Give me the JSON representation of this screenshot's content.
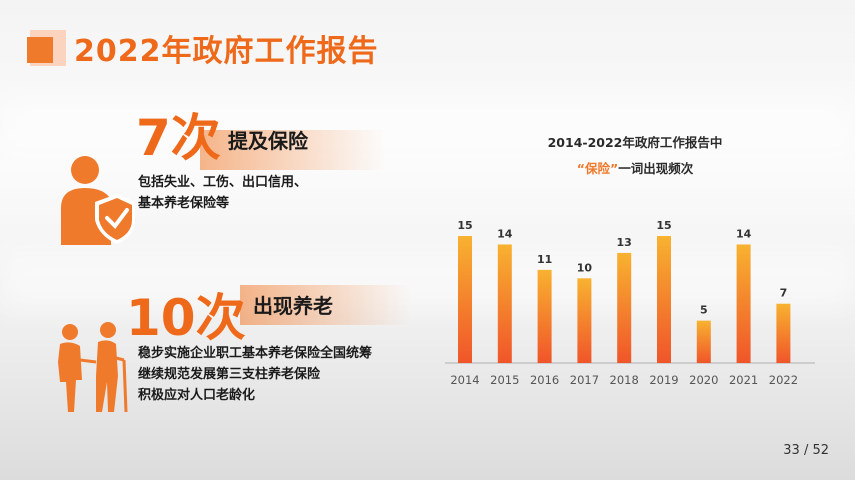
{
  "header": {
    "title": "2022年政府工作报告"
  },
  "block1": {
    "count": "7次",
    "heading": "提及保险",
    "lines": [
      "包括失业、工伤、出口信用、",
      "基本养老保险等"
    ]
  },
  "block2": {
    "count": "10次",
    "heading": "出现养老",
    "lines": [
      "稳步实施企业职工基本养老保险全国统筹",
      "继续规范发展第三支柱养老保险",
      "积极应对人口老龄化"
    ]
  },
  "chart_title": {
    "line1": "2014-2022年政府工作报告中",
    "line2_quote": "“保险”",
    "line2_rest": "一词出现频次"
  },
  "chart_data": {
    "type": "bar",
    "categories": [
      "2014",
      "2015",
      "2016",
      "2017",
      "2018",
      "2019",
      "2020",
      "2021",
      "2022"
    ],
    "values": [
      15,
      14,
      11,
      10,
      13,
      15,
      5,
      14,
      7
    ],
    "ylim": [
      0,
      15
    ],
    "grid": false,
    "legend": "none"
  },
  "pagination": "33 / 52",
  "colors": {
    "accent": "#ee6a1a",
    "bar_top": "#f8b230",
    "bar_bottom": "#f0552a"
  },
  "icons": [
    "title-square-icon",
    "person-shield-check-icon",
    "elderly-couple-icon"
  ]
}
